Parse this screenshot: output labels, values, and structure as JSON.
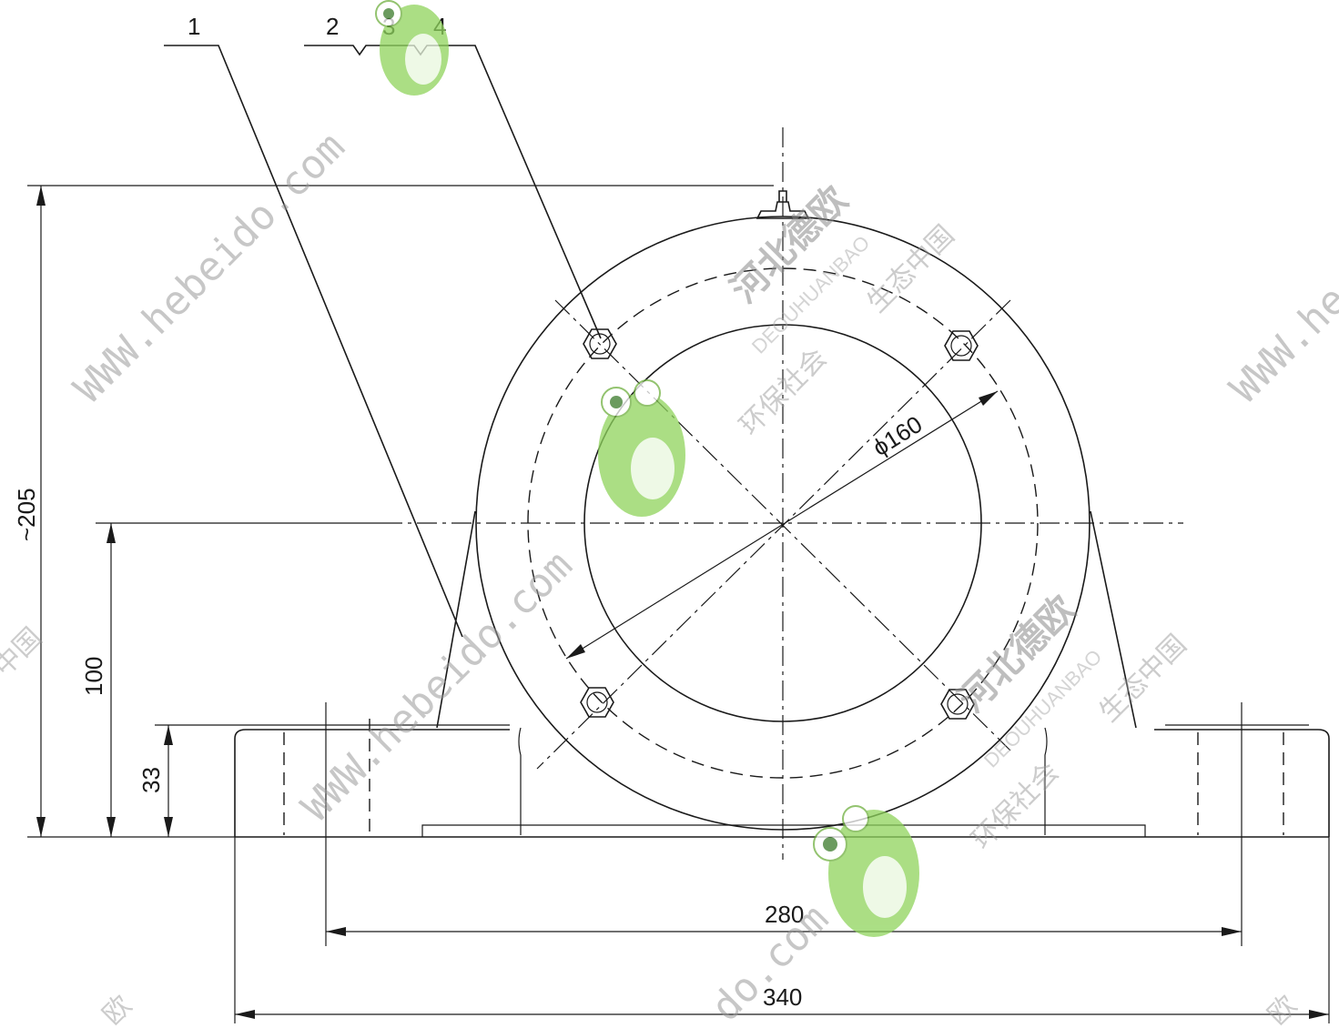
{
  "drawing": {
    "part_labels": [
      "1",
      "2",
      "3",
      "4"
    ],
    "dimensions": {
      "height_total": "~205",
      "center_height": "100",
      "base_height": "33",
      "bore_diameter": "ϕ160",
      "bolt_spacing": "280",
      "base_length": "340"
    }
  },
  "watermark": {
    "url_text": "WWW.hebeido.com",
    "url_text_partial": "WWW.he",
    "brand_cn": "河北德欧",
    "brand_en": "DEOUHUANBAO",
    "slogan_1": "环保社会",
    "slogan_2": "生态中国",
    "partial_com": "do.com",
    "partial_brand": "欧",
    "partial_slogan": "中国"
  },
  "colors": {
    "line": "#1a1a1a",
    "watermark_gray": "#9a9a9a",
    "frog_green": "#8fd45c"
  }
}
